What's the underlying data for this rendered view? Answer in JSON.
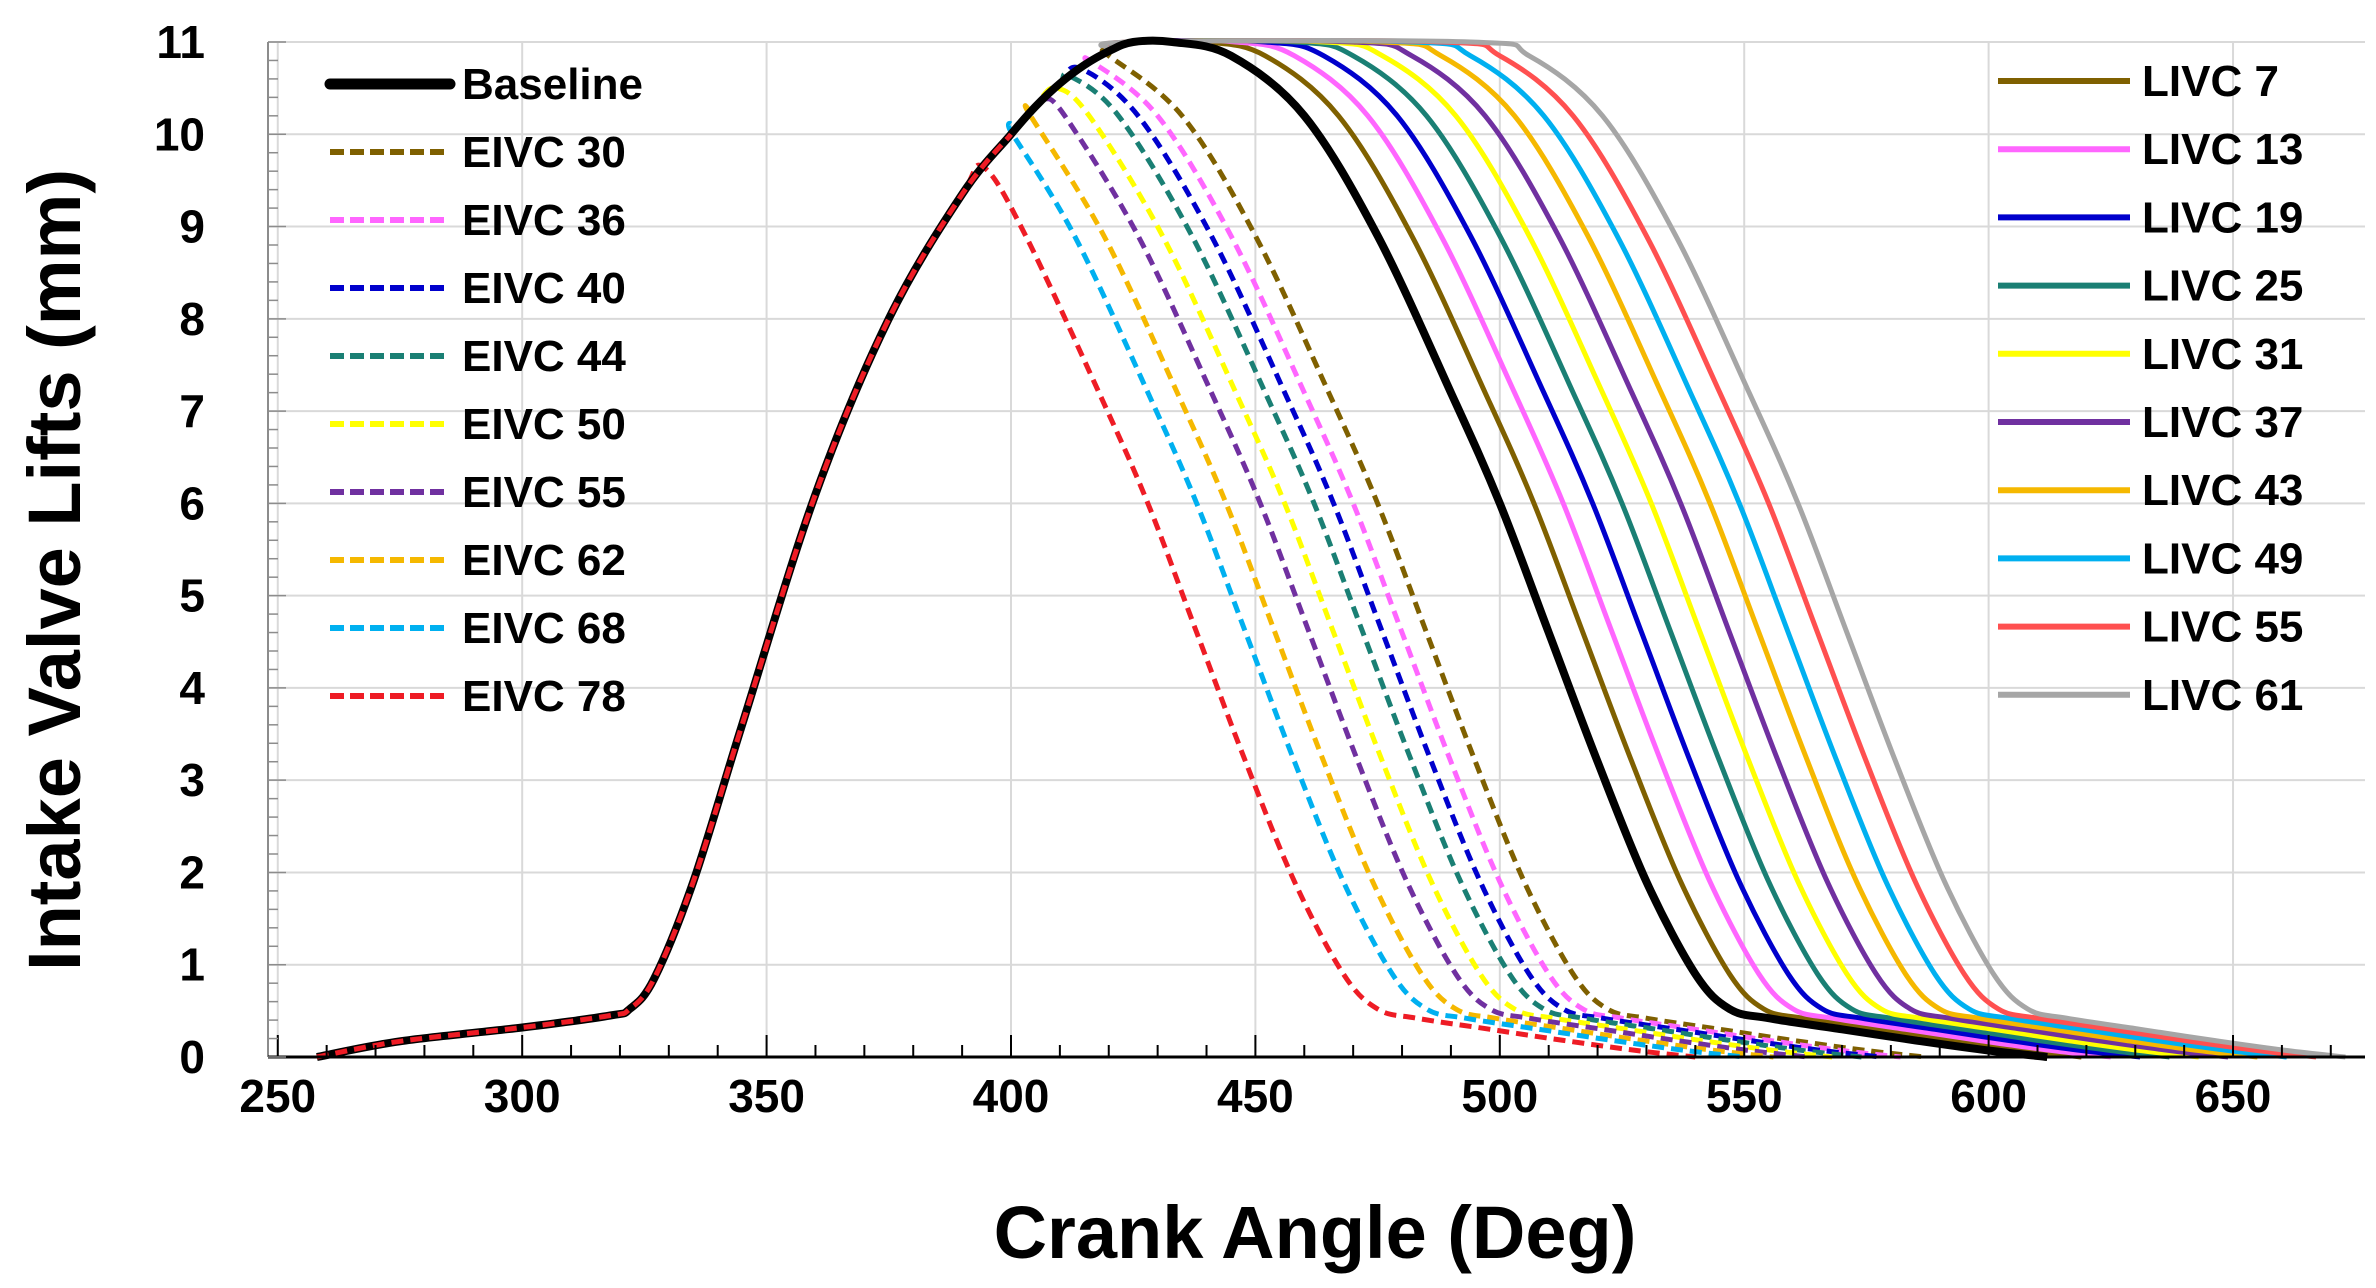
{
  "chart_data": {
    "type": "line",
    "title": "",
    "xlabel": "Crank Angle (Deg)",
    "ylabel": "Intake Valve Lifts (mm)",
    "xlim": [
      248,
      677
    ],
    "ylim": [
      0,
      11
    ],
    "xticks": [
      "250",
      "300",
      "350",
      "400",
      "450",
      "500",
      "550",
      "600",
      "650"
    ],
    "yticks": [
      "0",
      "1",
      "2",
      "3",
      "4",
      "5",
      "6",
      "7",
      "8",
      "9",
      "10",
      "11"
    ],
    "grid": true,
    "legend": [
      "top-left",
      "top-right"
    ],
    "profile": {
      "opening_x": [
        258,
        275,
        300,
        318,
        322,
        327,
        335,
        345,
        360,
        375,
        390,
        400,
        405,
        410,
        415,
        420,
        425
      ],
      "opening_y": [
        0,
        0.17,
        0.32,
        0.45,
        0.52,
        0.85,
        1.9,
        3.6,
        6.1,
        8.0,
        9.35,
        10.0,
        10.3,
        10.55,
        10.75,
        10.9,
        11.0
      ],
      "baseline_closing_x": [
        433,
        445,
        460,
        475,
        490,
        500,
        510,
        520,
        530,
        540,
        547,
        555,
        570,
        585,
        600,
        612
      ],
      "baseline_closing_y": [
        11.0,
        10.85,
        10.2,
        8.9,
        7.2,
        6.0,
        4.6,
        3.2,
        1.9,
        0.9,
        0.52,
        0.42,
        0.3,
        0.18,
        0.07,
        0.0
      ]
    },
    "series": [
      {
        "name": "Baseline",
        "shift": 0,
        "color": "#000000",
        "style": "solid"
      },
      {
        "name": "EIVC 30",
        "shift": -25,
        "color": "#7f6000",
        "style": "dashed"
      },
      {
        "name": "EIVC 36",
        "shift": -30,
        "color": "#ff66ff",
        "style": "dashed"
      },
      {
        "name": "EIVC 40",
        "shift": -34,
        "color": "#0000cc",
        "style": "dashed"
      },
      {
        "name": "EIVC 44",
        "shift": -38,
        "color": "#1a7f74",
        "style": "dashed"
      },
      {
        "name": "EIVC 50",
        "shift": -44,
        "color": "#ffff00",
        "style": "dashed"
      },
      {
        "name": "EIVC 55",
        "shift": -49,
        "color": "#7030a0",
        "style": "dashed"
      },
      {
        "name": "EIVC 62",
        "shift": -56,
        "color": "#f5b800",
        "style": "dashed"
      },
      {
        "name": "EIVC 68",
        "shift": -62,
        "color": "#00b0f0",
        "style": "dashed"
      },
      {
        "name": "EIVC 78",
        "shift": -72,
        "color": "#ee1c25",
        "style": "dashed"
      },
      {
        "name": "LIVC 7",
        "shift": 7,
        "color": "#7f6000",
        "style": "solid"
      },
      {
        "name": "LIVC 13",
        "shift": 13,
        "color": "#ff66ff",
        "style": "solid"
      },
      {
        "name": "LIVC 19",
        "shift": 19,
        "color": "#0000cc",
        "style": "solid"
      },
      {
        "name": "LIVC 25",
        "shift": 25,
        "color": "#1a7f74",
        "style": "solid"
      },
      {
        "name": "LIVC 31",
        "shift": 31,
        "color": "#ffff00",
        "style": "solid"
      },
      {
        "name": "LIVC 37",
        "shift": 37,
        "color": "#7030a0",
        "style": "solid"
      },
      {
        "name": "LIVC 43",
        "shift": 43,
        "color": "#f5b800",
        "style": "solid"
      },
      {
        "name": "LIVC 49",
        "shift": 49,
        "color": "#00b0f0",
        "style": "solid"
      },
      {
        "name": "LIVC 55",
        "shift": 55,
        "color": "#ff5050",
        "style": "solid"
      },
      {
        "name": "LIVC 61",
        "shift": 61,
        "color": "#a6a6a6",
        "style": "solid"
      }
    ]
  }
}
